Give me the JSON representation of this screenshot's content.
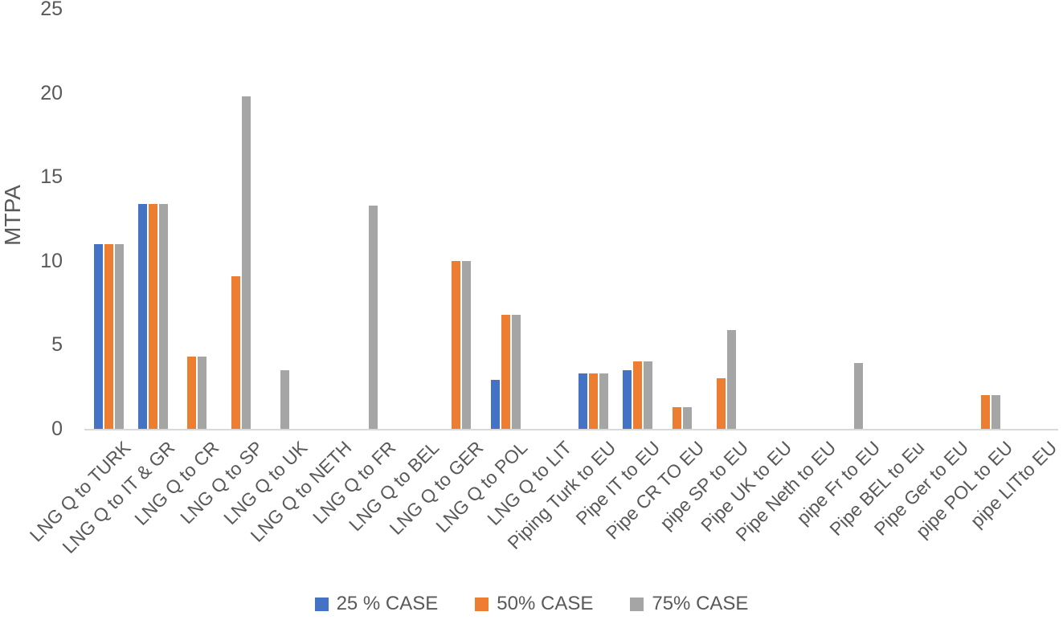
{
  "chart_data": {
    "type": "bar",
    "title": "",
    "xlabel": "",
    "ylabel": "MTPA",
    "ylim": [
      0,
      25
    ],
    "yticks": [
      0,
      5,
      10,
      15,
      20,
      25
    ],
    "grid": false,
    "legend_position": "bottom",
    "categories": [
      "LNG Q to TURK",
      "LNG Q to IT & GR",
      "LNG Q to CR",
      "LNG Q to  SP",
      "LNG Q to UK",
      "LNG Q to NETH",
      "LNG Q to FR",
      "LNG Q to BEL",
      "LNG Q to GER",
      "LNG Q to POL",
      "LNG Q to LIT",
      "Piping Turk to EU",
      "Pipe IT to EU",
      "Pipe CR TO EU",
      "pipe SP to EU",
      "Pipe UK to EU",
      "Pipe Neth to EU",
      "pipe Fr to EU",
      "Pipe BEL to Eu",
      "Pipe Ger to EU",
      "pipe POL to EU",
      "pipe LITto EU"
    ],
    "series": [
      {
        "name": "25 % CASE",
        "color": "#4472C4",
        "values": [
          11,
          13.4,
          0,
          0,
          0,
          0,
          0,
          0,
          0,
          2.9,
          0,
          3.3,
          3.5,
          0,
          0,
          0,
          0,
          0,
          0,
          0,
          0,
          0
        ]
      },
      {
        "name": "50% CASE",
        "color": "#ED7D31",
        "values": [
          11,
          13.4,
          4.3,
          9.1,
          0,
          0,
          0,
          0,
          10,
          6.8,
          0,
          3.3,
          4,
          1.3,
          3,
          0,
          0,
          0,
          0,
          0,
          2,
          0
        ]
      },
      {
        "name": "75% CASE",
        "color": "#A5A5A5",
        "values": [
          11,
          13.4,
          4.3,
          19.8,
          3.5,
          0,
          13.3,
          0,
          10,
          6.8,
          0,
          3.3,
          4,
          1.3,
          5.9,
          0,
          0,
          3.9,
          0,
          0,
          2,
          0
        ]
      }
    ]
  },
  "colors": {
    "axis_line": "#D9D9D9",
    "text": "#595959",
    "background": "#FFFFFF"
  }
}
